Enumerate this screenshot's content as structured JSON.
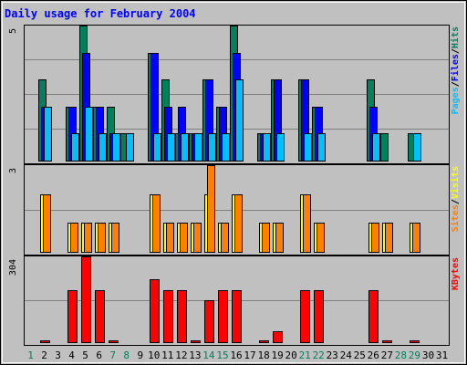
{
  "chart_data": {
    "type": "bar",
    "title": "Daily usage for February 2004",
    "days": [
      "1",
      "2",
      "3",
      "4",
      "5",
      "6",
      "7",
      "8",
      "9",
      "10",
      "11",
      "12",
      "13",
      "14",
      "15",
      "16",
      "17",
      "18",
      "19",
      "20",
      "21",
      "22",
      "23",
      "24",
      "25",
      "26",
      "27",
      "28",
      "29",
      "30",
      "31"
    ],
    "weekend_days": [
      "1",
      "7",
      "8",
      "14",
      "15",
      "21",
      "22",
      "28",
      "29"
    ],
    "colors": {
      "hits": "#00805c",
      "files": "#0000ff",
      "pages": "#00c0ff",
      "visits": "#ffff00",
      "sites": "#ff8000",
      "kbytes": "#ff0000",
      "weekend_label": "#00805c",
      "weekday_label": "#000000",
      "title": "#0000ff",
      "plot_bg": "#c0c0c0",
      "gridline": "#808080"
    },
    "panels": [
      {
        "id": "hits-panel",
        "ymax_label": "5",
        "ylim": [
          0,
          5
        ],
        "legend": [
          {
            "text": "Pages",
            "color": "#00c0ff"
          },
          {
            "text": "/",
            "color": "#000000"
          },
          {
            "text": "Files",
            "color": "#0000ff"
          },
          {
            "text": "/",
            "color": "#000000"
          },
          {
            "text": "Hits",
            "color": "#00805c"
          }
        ],
        "series": [
          {
            "name": "Hits",
            "color": "#00805c",
            "values": [
              0,
              3,
              0,
              2,
              5,
              2,
              2,
              1,
              0,
              4,
              3,
              1,
              1,
              3,
              2,
              5,
              0,
              1,
              3,
              0,
              3,
              2,
              0,
              0,
              0,
              3,
              1,
              0,
              1,
              0,
              0
            ]
          },
          {
            "name": "Files",
            "color": "#0000ff",
            "values": [
              0,
              2,
              0,
              2,
              4,
              2,
              1,
              0,
              0,
              4,
              2,
              2,
              1,
              3,
              2,
              4,
              0,
              1,
              3,
              0,
              3,
              2,
              0,
              0,
              0,
              2,
              0,
              0,
              0,
              0,
              0
            ]
          },
          {
            "name": "Pages",
            "color": "#00c0ff",
            "values": [
              0,
              2,
              0,
              1,
              2,
              1,
              1,
              1,
              0,
              1,
              1,
              1,
              1,
              1,
              1,
              3,
              0,
              1,
              1,
              0,
              1,
              1,
              0,
              0,
              0,
              1,
              0,
              0,
              1,
              0,
              0
            ]
          }
        ]
      },
      {
        "id": "visits-panel",
        "ymax_label": "3",
        "ylim": [
          0,
          3
        ],
        "legend": [
          {
            "text": "Sites",
            "color": "#ff8000"
          },
          {
            "text": "/",
            "color": "#000000"
          },
          {
            "text": "Visits",
            "color": "#ffff00"
          }
        ],
        "series": [
          {
            "name": "Visits",
            "color": "#ffff00",
            "values": [
              0,
              2,
              0,
              1,
              1,
              1,
              1,
              0,
              0,
              2,
              1,
              1,
              1,
              2,
              1,
              2,
              0,
              1,
              1,
              0,
              2,
              1,
              0,
              0,
              0,
              1,
              1,
              0,
              1,
              0,
              0
            ]
          },
          {
            "name": "Sites",
            "color": "#ff8000",
            "values": [
              0,
              2,
              0,
              1,
              1,
              1,
              1,
              0,
              0,
              2,
              1,
              1,
              1,
              3,
              1,
              2,
              0,
              1,
              1,
              0,
              2,
              1,
              0,
              0,
              0,
              1,
              1,
              0,
              1,
              0,
              0
            ]
          }
        ]
      },
      {
        "id": "kbytes-panel",
        "ymax_label": "304",
        "ylim": [
          0,
          304
        ],
        "legend": [
          {
            "text": "KBytes",
            "color": "#ff0000"
          }
        ],
        "series": [
          {
            "name": "KBytes",
            "color": "#ff0000",
            "values": [
              0,
              8,
              0,
              185,
              304,
              185,
              8,
              0,
              0,
              222,
              185,
              185,
              8,
              150,
              185,
              185,
              0,
              8,
              38,
              0,
              185,
              185,
              0,
              0,
              0,
              185,
              8,
              0,
              8,
              0,
              0
            ]
          }
        ]
      }
    ]
  }
}
